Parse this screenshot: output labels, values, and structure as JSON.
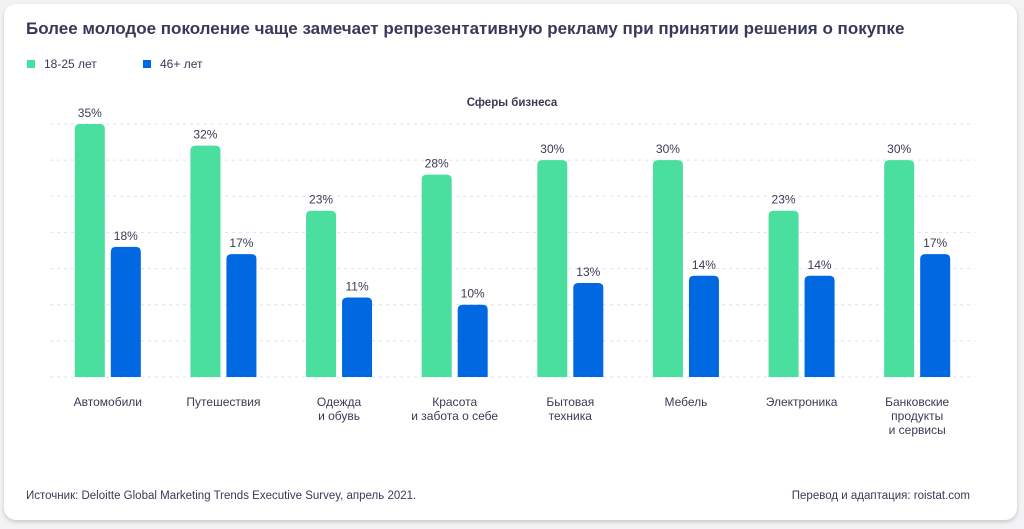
{
  "chart_data": {
    "type": "bar",
    "title": "Более молодое поколение чаще замечает репрезентативную рекламу при принятии решения о покупке",
    "subtitle": "Сферы бизнеса",
    "categories": [
      [
        "Автомобили"
      ],
      [
        "Путешествия"
      ],
      [
        "Одежда",
        "и обувь"
      ],
      [
        "Красота",
        "и забота о себе"
      ],
      [
        "Бытовая",
        "техника"
      ],
      [
        "Мебель"
      ],
      [
        "Электроника"
      ],
      [
        "Банковские",
        "продукты",
        "и сервисы"
      ]
    ],
    "series": [
      {
        "name": "18-25 лет",
        "color": "#4ade9f",
        "values": [
          35,
          32,
          23,
          28,
          30,
          30,
          23,
          30
        ]
      },
      {
        "name": "46+ лет",
        "color": "#0068e0",
        "values": [
          18,
          17,
          11,
          10,
          13,
          14,
          14,
          17
        ]
      }
    ],
    "value_suffix": "%",
    "ylim": [
      0,
      35
    ],
    "grid": true,
    "grid_step": 5,
    "legend_position": "top-left"
  },
  "footer": {
    "source": "Источник: Deloitte Global Marketing Trends Executive Survey, апрель 2021.",
    "credit": "Перевод и адаптация: roistat.com"
  }
}
